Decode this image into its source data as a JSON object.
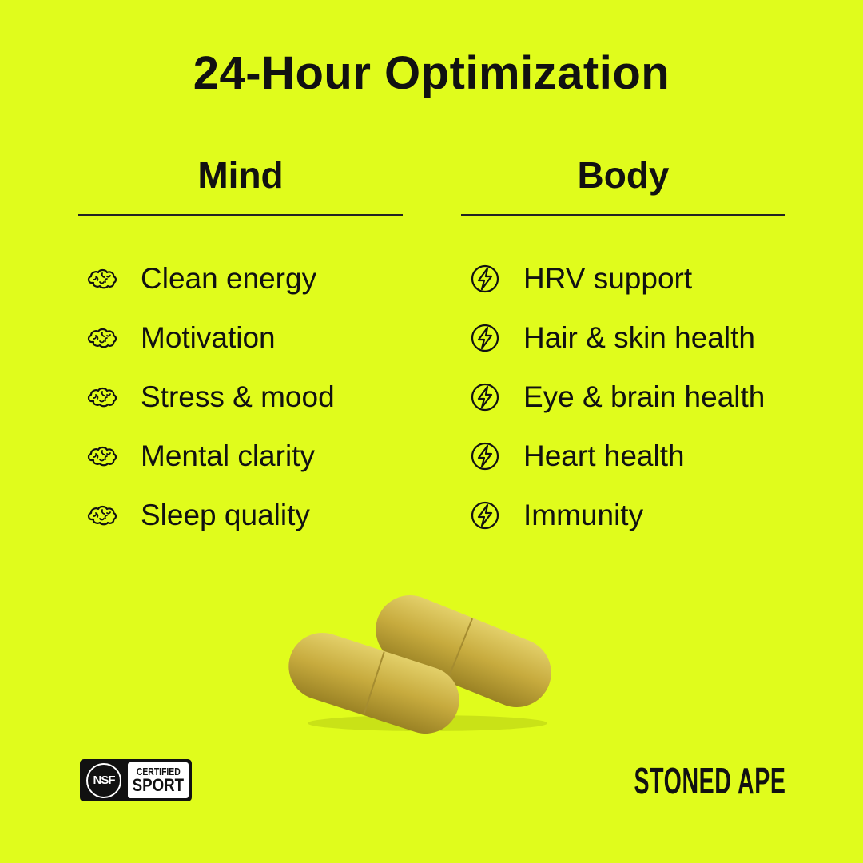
{
  "title": "24-Hour Optimization",
  "mind": {
    "heading": "Mind",
    "icon": "brain-icon",
    "items": [
      "Clean energy",
      "Motivation",
      "Stress & mood",
      "Mental clarity",
      "Sleep quality"
    ]
  },
  "body": {
    "heading": "Body",
    "icon": "lightning-circle-icon",
    "items": [
      "HRV support",
      "Hair & skin health",
      "Eye & brain health",
      "Heart health",
      "Immunity"
    ]
  },
  "badge": {
    "logo": "NSF",
    "line1": "CERTIFIED",
    "line2": "SPORT"
  },
  "brand": "STONED APE",
  "colors": {
    "background": "#e0fc1c",
    "text": "#111111",
    "capsule": "#c9b144"
  }
}
